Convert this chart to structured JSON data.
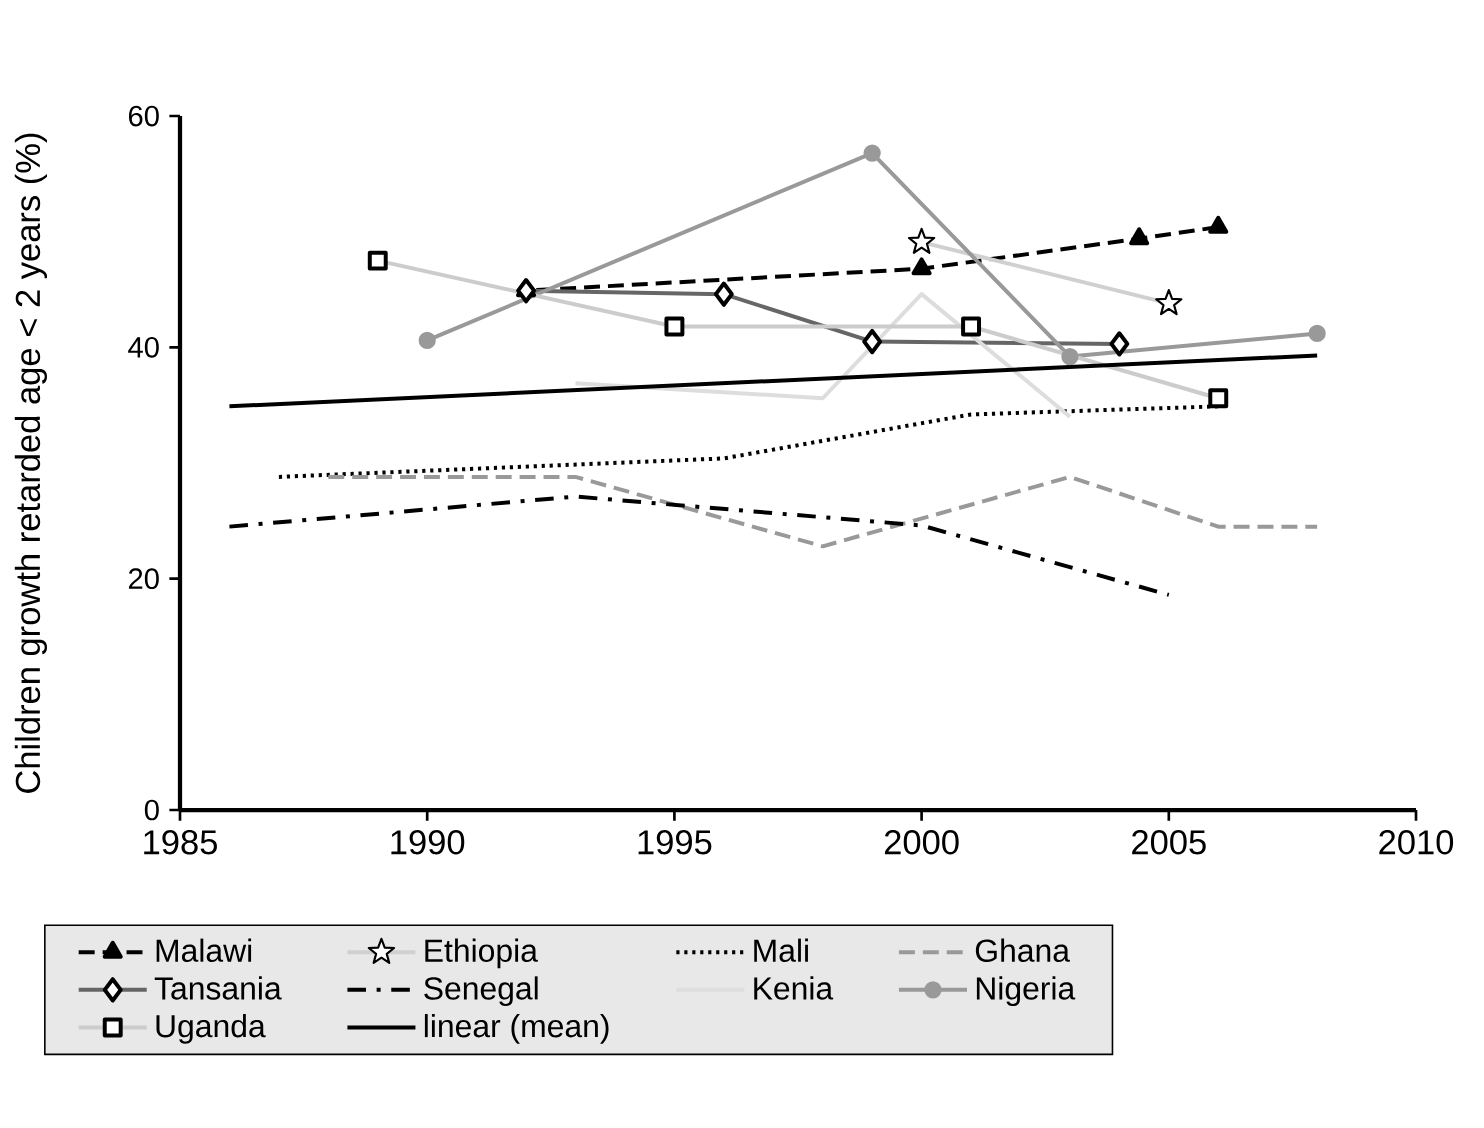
{
  "chart_data": {
    "type": "line",
    "ylabel": "Children growth retarded age < 2 years (%)",
    "xlim": [
      1985,
      2010
    ],
    "xticks": [
      1985,
      1990,
      1995,
      2000,
      2005,
      2010
    ],
    "ylim": [
      0,
      60
    ],
    "yticks": [
      0,
      20,
      40,
      60
    ],
    "legend": "bottom",
    "grid": false,
    "series": [
      {
        "name": "Malawi",
        "color": "#000000",
        "marker": "triangle",
        "line_style": "dashed",
        "x": [
          2006,
          2004.4,
          2000,
          1992
        ],
        "values": [
          50.4,
          49.4,
          46.8,
          44.9
        ]
      },
      {
        "name": "Ethiopia",
        "color": "#d0d0d0",
        "marker": "star",
        "line_style": "solid",
        "x": [
          2000,
          2005
        ],
        "values": [
          49.1,
          43.8
        ]
      },
      {
        "name": "Mali",
        "color": "#000000",
        "marker": "none",
        "line_style": "dotted",
        "x": [
          1987,
          1996,
          2001,
          2006
        ],
        "values": [
          28.8,
          30.4,
          34.2,
          34.9
        ]
      },
      {
        "name": "Ghana",
        "color": "#999999",
        "marker": "none",
        "line_style": "dashed",
        "x": [
          1988,
          1993,
          1998,
          2003,
          2006,
          2008
        ],
        "values": [
          28.8,
          28.8,
          22.8,
          28.8,
          24.5,
          24.5
        ]
      },
      {
        "name": "Tansania",
        "color": "#666666",
        "marker": "diamond",
        "line_style": "solid",
        "x": [
          2004,
          1999,
          1996,
          1992
        ],
        "values": [
          40.3,
          40.5,
          44.6,
          44.9
        ]
      },
      {
        "name": "Senegal",
        "color": "#000000",
        "marker": "none",
        "line_style": "dashdotted",
        "x": [
          1986,
          1993,
          2000,
          2005
        ],
        "values": [
          24.5,
          27.1,
          24.6,
          18.6
        ]
      },
      {
        "name": "Kenia",
        "color": "#dddddd",
        "marker": "none",
        "line_style": "solid",
        "x": [
          1993,
          1998,
          2000,
          2003
        ],
        "values": [
          36.9,
          35.6,
          44.6,
          34.0
        ]
      },
      {
        "name": "Nigeria",
        "color": "#999999",
        "marker": "circle",
        "line_style": "solid",
        "x": [
          1990,
          1999,
          2003,
          2008
        ],
        "values": [
          40.6,
          56.8,
          39.2,
          41.2
        ]
      },
      {
        "name": "Uganda",
        "color": "#cccccc",
        "marker": "square",
        "line_style": "solid",
        "x": [
          1989,
          1995,
          2001,
          2006
        ],
        "values": [
          47.5,
          41.8,
          41.8,
          35.6
        ]
      },
      {
        "name": "linear (mean)",
        "color": "#000000",
        "marker": "none",
        "line_style": "solid",
        "x": [
          1986,
          2008
        ],
        "values": [
          34.9,
          39.3
        ]
      }
    ]
  }
}
